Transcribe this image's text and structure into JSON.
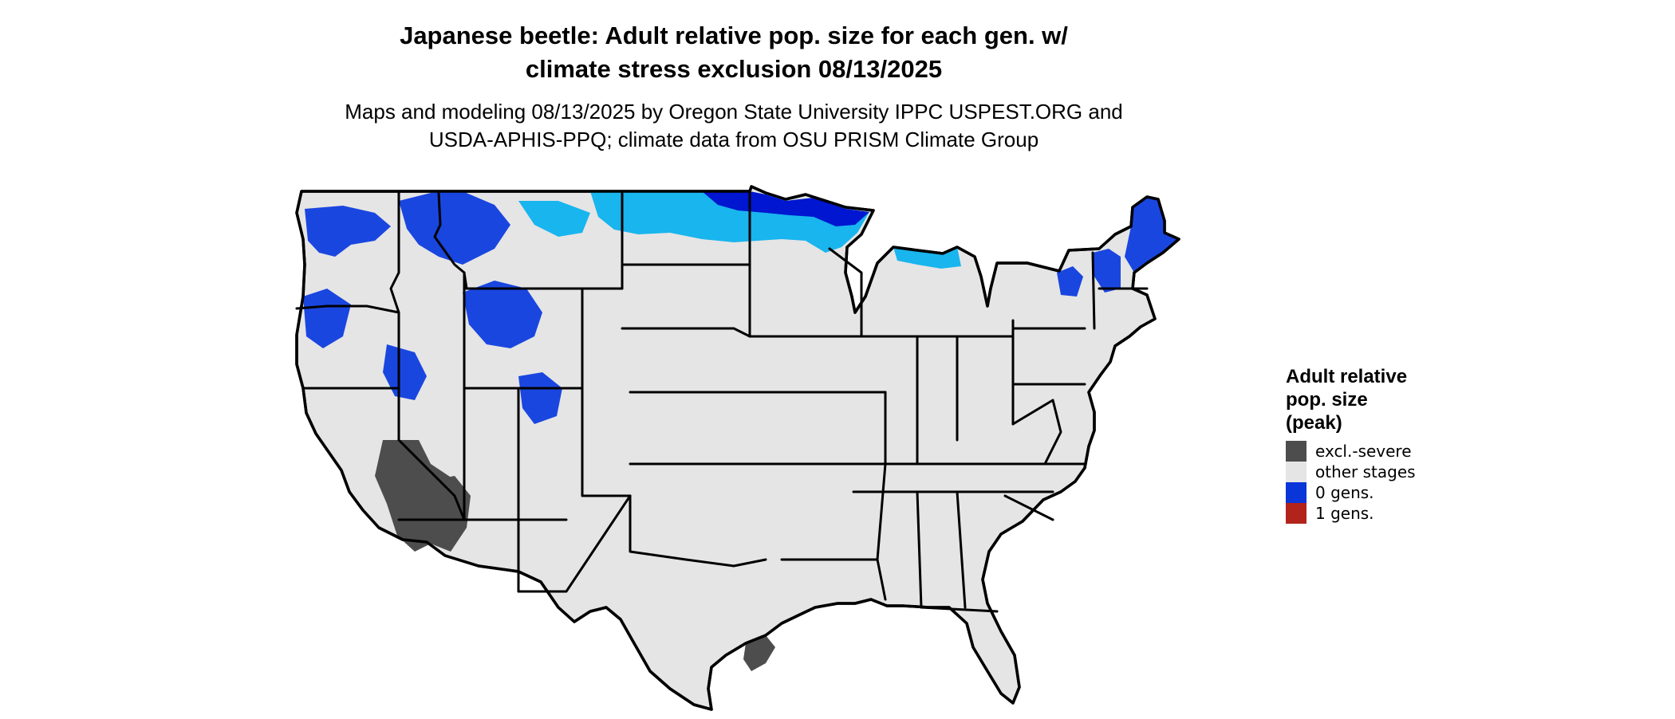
{
  "title": {
    "line1": "Japanese beetle: Adult relative pop. size for each gen. w/",
    "line2": "climate stress exclusion 08/13/2025"
  },
  "subtitle": {
    "line1": "Maps and modeling 08/13/2025 by Oregon State University IPPC USPEST.ORG and",
    "line2": "USDA-APHIS-PPQ; climate data from OSU PRISM Climate Group"
  },
  "legend": {
    "title_lines": [
      "Adult relative",
      "pop. size",
      "(peak)"
    ],
    "items": [
      {
        "label": "excl.-severe",
        "color": "#4d4d4d"
      },
      {
        "label": "other stages",
        "color": "#e5e5e5"
      },
      {
        "label": "0 gens.",
        "color": "#0a35d8"
      },
      {
        "label": "1 gens.",
        "color": "#b2231b"
      }
    ]
  },
  "colors": {
    "land": "#e5e5e5",
    "border": "#000000",
    "zero_gens_dark": "#0016d0",
    "zero_gens_mid": "#1a46e0",
    "zero_gens_light": "#19b5ee",
    "excluded": "#4d4d4d"
  }
}
